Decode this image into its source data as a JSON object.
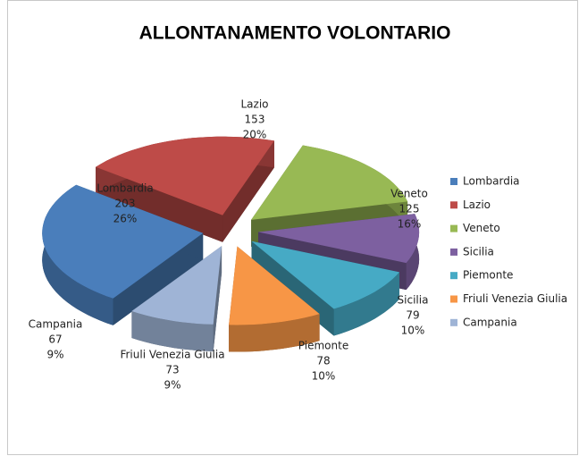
{
  "chart_data": {
    "type": "pie",
    "title": "ALLONTANAMENTO VOLONTARIO",
    "categories": [
      "Lombardia",
      "Lazio",
      "Veneto",
      "Sicilia",
      "Piemonte",
      "Friuli Venezia Giulia",
      "Campania"
    ],
    "values": [
      203,
      153,
      125,
      79,
      78,
      73,
      67
    ],
    "percent_labels": [
      "26%",
      "20%",
      "16%",
      "10%",
      "10%",
      "9%",
      "9%"
    ],
    "colors": [
      "#4a7ebb",
      "#be4b48",
      "#98b954",
      "#7d60a0",
      "#46aac5",
      "#f79646",
      "#9fb4d6"
    ],
    "legend": "right"
  }
}
